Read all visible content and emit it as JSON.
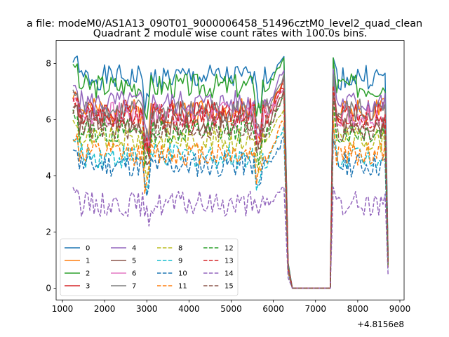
{
  "figure": {
    "suptitle": "a file: modeM0/AS1A13_090T01_9000006458_51496cztM0_level2_quad_clean",
    "title": "Quadrant 2 module wise count rates with 100.0s bins.",
    "offset_label": "+4.8156e8"
  },
  "chart_data": {
    "type": "line",
    "title": "Quadrant 2 module wise count rates with 100.0s bins.",
    "xlabel": "",
    "ylabel": "",
    "x_offset": 481560000,
    "xlim": [
      850,
      9100
    ],
    "ylim": [
      -0.42,
      8.82
    ],
    "x_ticks": [
      1000,
      2000,
      3000,
      4000,
      5000,
      6000,
      7000,
      8000,
      9000
    ],
    "y_ticks": [
      0,
      2,
      4,
      6,
      8
    ],
    "grid": false,
    "legend_position": "lower-left",
    "legend_columns": 4,
    "series": [
      {
        "name": "0",
        "color": "#1f77b4",
        "dash": "solid",
        "level": 7.5,
        "dip": 0.9,
        "peak": 8.2,
        "seed": 1
      },
      {
        "name": "1",
        "color": "#ff7f0e",
        "dash": "solid",
        "level": 6.3,
        "dip": 1.0,
        "peak": 7.4,
        "seed": 2
      },
      {
        "name": "2",
        "color": "#2ca02c",
        "dash": "solid",
        "level": 7.2,
        "dip": 0.9,
        "peak": 8.2,
        "seed": 3
      },
      {
        "name": "3",
        "color": "#d62728",
        "dash": "solid",
        "level": 6.3,
        "dip": 1.0,
        "peak": 7.4,
        "seed": 4
      },
      {
        "name": "4",
        "color": "#9467bd",
        "dash": "solid",
        "level": 6.6,
        "dip": 1.0,
        "peak": 7.8,
        "seed": 5
      },
      {
        "name": "5",
        "color": "#8c564b",
        "dash": "solid",
        "level": 5.9,
        "dip": 1.0,
        "peak": 7.0,
        "seed": 6
      },
      {
        "name": "6",
        "color": "#e377c2",
        "dash": "solid",
        "level": 6.2,
        "dip": 1.0,
        "peak": 7.2,
        "seed": 7
      },
      {
        "name": "7",
        "color": "#7f7f7f",
        "dash": "solid",
        "level": 6.3,
        "dip": 1.0,
        "peak": 7.6,
        "seed": 8
      },
      {
        "name": "8",
        "color": "#bcbd22",
        "dash": "dashed",
        "level": 5.3,
        "dip": 1.0,
        "peak": 6.5,
        "seed": 9
      },
      {
        "name": "9",
        "color": "#17becf",
        "dash": "dashed",
        "level": 4.7,
        "dip": 1.0,
        "peak": 5.8,
        "seed": 10
      },
      {
        "name": "10",
        "color": "#1f77b4",
        "dash": "dashed",
        "level": 4.4,
        "dip": 1.0,
        "peak": 5.3,
        "seed": 11
      },
      {
        "name": "11",
        "color": "#ff7f0e",
        "dash": "dashed",
        "level": 4.8,
        "dip": 1.0,
        "peak": 6.0,
        "seed": 12
      },
      {
        "name": "12",
        "color": "#2ca02c",
        "dash": "dashed",
        "level": 5.6,
        "dip": 1.0,
        "peak": 6.8,
        "seed": 13
      },
      {
        "name": "13",
        "color": "#d62728",
        "dash": "dashed",
        "level": 6.1,
        "dip": 1.0,
        "peak": 7.2,
        "seed": 14
      },
      {
        "name": "14",
        "color": "#9467bd",
        "dash": "dashed",
        "level": 3.0,
        "dip": 0.5,
        "peak": 3.6,
        "seed": 15
      },
      {
        "name": "15",
        "color": "#8c564b",
        "dash": "dashed",
        "level": 5.7,
        "dip": 1.0,
        "peak": 6.9,
        "seed": 16
      }
    ]
  }
}
